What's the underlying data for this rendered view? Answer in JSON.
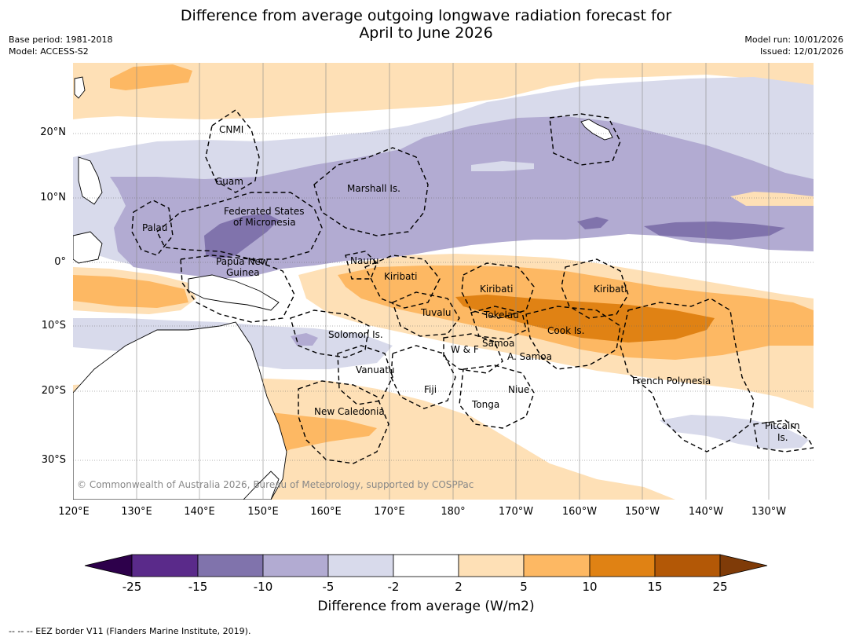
{
  "title_line1": "Difference from average outgoing longwave radiation forecast for",
  "title_line2": "April to June 2026",
  "meta_left": {
    "base_period": "Base period: 1981-2018",
    "model": "Model: ACCESS-S2"
  },
  "meta_right": {
    "model_run": "Model run: 10/01/2026",
    "issued": "Issued: 12/01/2026"
  },
  "lat_labels": [
    "20°N",
    "10°N",
    "0°",
    "10°S",
    "20°S",
    "30°S"
  ],
  "lon_labels": [
    "120°E",
    "130°E",
    "140°E",
    "150°E",
    "160°E",
    "170°E",
    "180°",
    "170°W",
    "160°W",
    "150°W",
    "140°W",
    "130°W"
  ],
  "region_labels": [
    {
      "id": "cnmi",
      "text": "CNMI"
    },
    {
      "id": "guam",
      "text": "Guam"
    },
    {
      "id": "marshall",
      "text": "Marshall Is."
    },
    {
      "id": "fsm1",
      "text": "Federated States"
    },
    {
      "id": "fsm2",
      "text": "of Micronesia"
    },
    {
      "id": "palau",
      "text": "Palau"
    },
    {
      "id": "png1",
      "text": "Papua New"
    },
    {
      "id": "png2",
      "text": "Guinea"
    },
    {
      "id": "nauru",
      "text": "Nauru"
    },
    {
      "id": "kiribati1",
      "text": "Kiribati"
    },
    {
      "id": "kiribati2",
      "text": "Kiribati"
    },
    {
      "id": "kiribati3",
      "text": "Kiribati"
    },
    {
      "id": "tuvalu",
      "text": "Tuvalu"
    },
    {
      "id": "tokelau",
      "text": "Tokelau"
    },
    {
      "id": "cook",
      "text": "Cook Is."
    },
    {
      "id": "solomon",
      "text": "Solomon Is."
    },
    {
      "id": "wf",
      "text": "W & F"
    },
    {
      "id": "samoa",
      "text": "Samoa"
    },
    {
      "id": "asamoa",
      "text": "A. Samoa"
    },
    {
      "id": "vanuatu",
      "text": "Vanuatu"
    },
    {
      "id": "fiji",
      "text": "Fiji"
    },
    {
      "id": "niue",
      "text": "Niue"
    },
    {
      "id": "tonga",
      "text": "Tonga"
    },
    {
      "id": "frpoly",
      "text": "French Polynesia"
    },
    {
      "id": "newcal",
      "text": "New Caledonia"
    },
    {
      "id": "pitcairn1",
      "text": "Pitcairn"
    },
    {
      "id": "pitcairn2",
      "text": "Is."
    }
  ],
  "copyright": "© Commonwealth of Australia 2026, Bureau of Meteorology, supported by COSPPac",
  "colorbar": {
    "ticks": [
      "-25",
      "-15",
      "-10",
      "-5",
      "-2",
      "2",
      "5",
      "10",
      "15",
      "25"
    ],
    "colors": [
      "#2d004b",
      "#5a2a8a",
      "#8073ac",
      "#b2abd2",
      "#d8daeb",
      "#ffffff",
      "#fee0b6",
      "#fdb863",
      "#e08214",
      "#b35806",
      "#7f3b08"
    ],
    "title": "Difference from average (W/m2)"
  },
  "footer": "--  --  -- EEZ border V11 (Flanders Marine Institute, 2019)."
}
